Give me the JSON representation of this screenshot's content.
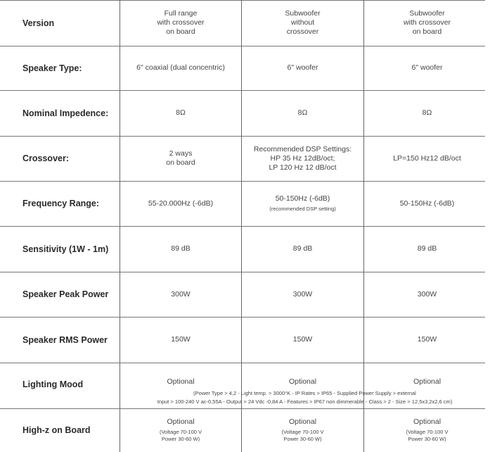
{
  "rows": [
    {
      "label": "Version",
      "cells": [
        [
          "Full range",
          "with crossover",
          "on board"
        ],
        [
          "Subwoofer",
          "without",
          "crossover"
        ],
        [
          "Subwoofer",
          "with crossover",
          "on board"
        ]
      ]
    },
    {
      "label": "Speaker Type:",
      "cells": [
        [
          "6\" coaxial (dual concentric)"
        ],
        [
          "6\" woofer"
        ],
        [
          "6\" woofer"
        ]
      ]
    },
    {
      "label": "Nominal Impedence:",
      "cells": [
        [
          "8Ω"
        ],
        [
          "8Ω"
        ],
        [
          "8Ω"
        ]
      ]
    },
    {
      "label": "Crossover:",
      "cells": [
        [
          "2 ways",
          "on board"
        ],
        [
          "Recommended DSP Settings:",
          "HP 35 Hz 12dB/oct;",
          "LP 120 Hz 12 dB/oct"
        ],
        [
          "LP=150 Hz12 dB/oct"
        ]
      ]
    },
    {
      "label": "Frequency Range:",
      "cells": [
        [
          "55-20.000Hz (-6dB)"
        ],
        [
          "50-150Hz (-6dB)"
        ],
        [
          "50-150Hz (-6dB)"
        ]
      ],
      "sub": [
        "",
        "(recommended DSP setting)",
        ""
      ]
    },
    {
      "label": "Sensitivity (1W - 1m)",
      "cells": [
        [
          "89 dB"
        ],
        [
          "89 dB"
        ],
        [
          "89 dB"
        ]
      ]
    },
    {
      "label": "Speaker Peak Power",
      "cells": [
        [
          "300W"
        ],
        [
          "300W"
        ],
        [
          "300W"
        ]
      ]
    },
    {
      "label": "Speaker RMS Power",
      "cells": [
        [
          "150W"
        ],
        [
          "150W"
        ],
        [
          "150W"
        ]
      ]
    },
    {
      "label": "Lighting Mood",
      "cells": [
        [
          "Optional"
        ],
        [
          "Optional"
        ],
        [
          "Optional"
        ]
      ]
    },
    {
      "label": "High-z on Board",
      "cells": [
        [
          "Optional"
        ],
        [
          "Optional"
        ],
        [
          "Optional"
        ]
      ],
      "sub": [
        "(Voltage 70-100 V\nPower 30-60 W)",
        "(Voltage 70-100 V\nPower 30-60 W)",
        "(Voltage 70-100 V\nPower 30-60 W)"
      ]
    }
  ],
  "lighting_note": [
    "(Power Type > 4,2 - Light temp. > 3000°K - IP Rates > IP65 - Supplied Power Supply > external",
    "Input > 100-240 V ac-0,55A - Output > 24 Vdc -0,84 A - Features > IP67 non dimmerable - Class > 2 - Size > 12,5x3,2x2,6 cm)"
  ]
}
